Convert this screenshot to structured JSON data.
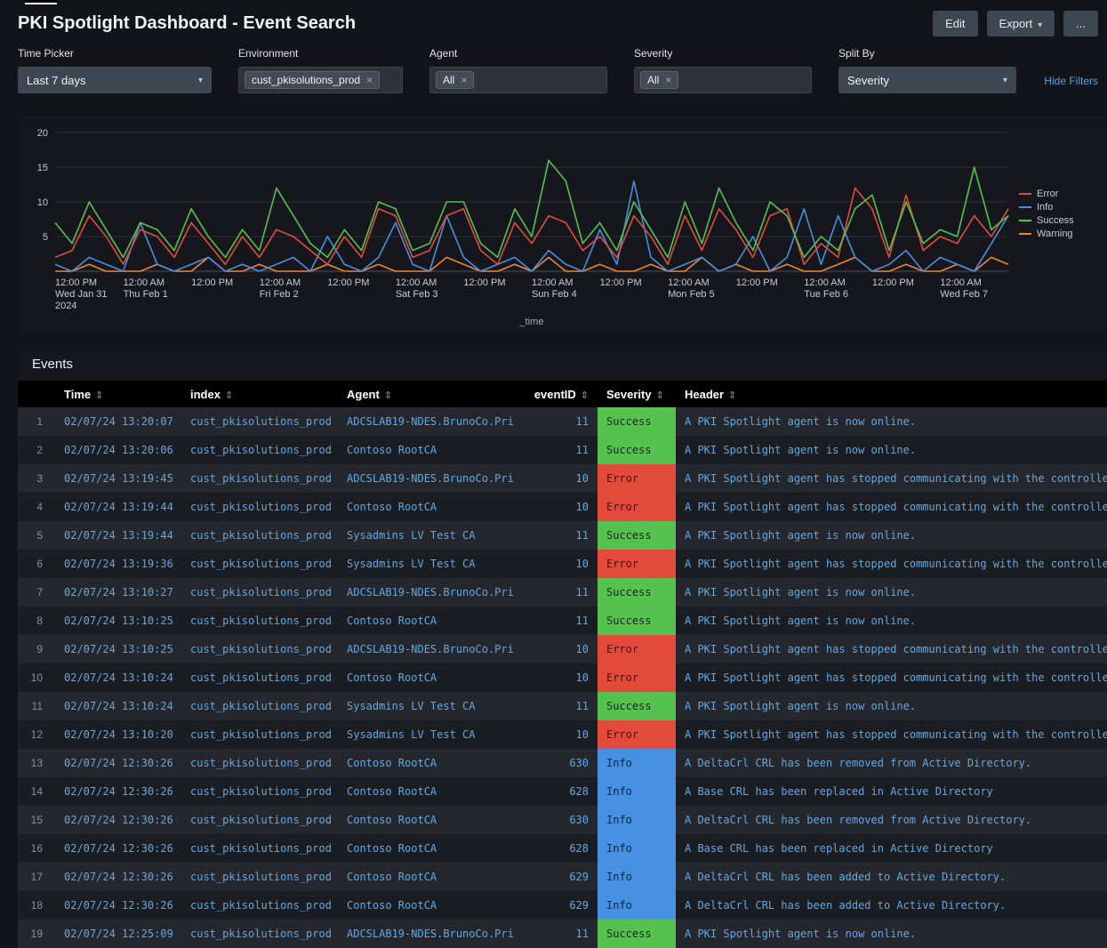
{
  "header": {
    "title": "PKI Spotlight Dashboard - Event Search",
    "edit": "Edit",
    "export": "Export",
    "export_caret": "▾",
    "more": "..."
  },
  "filters": {
    "caret": "▾",
    "chip_close": "×",
    "hide_filters": "Hide Filters",
    "items": [
      {
        "label": "Time Picker",
        "type": "dropdown",
        "value": "Last 7 days"
      },
      {
        "label": "Environment",
        "type": "tokens",
        "chips": [
          "cust_pkisolutions_prod"
        ]
      },
      {
        "label": "Agent",
        "type": "tokens",
        "chips": [
          "All"
        ]
      },
      {
        "label": "Severity",
        "type": "tokens",
        "chips": [
          "All"
        ]
      },
      {
        "label": "Split By",
        "type": "dropdown",
        "value": "Severity"
      }
    ]
  },
  "chart_data": {
    "type": "line",
    "title": "",
    "xlabel": "_time",
    "ylabel": "",
    "ylim": [
      0,
      20
    ],
    "yticks": [
      5,
      10,
      15,
      20
    ],
    "grid": true,
    "legend_position": "right",
    "x_start": "2024-01-31 12:00 PM",
    "x_step_hours": 3,
    "series": [
      {
        "name": "Error",
        "color": "#e24b3c",
        "values": [
          2,
          3,
          8,
          5,
          1,
          6,
          5,
          2,
          7,
          4,
          1,
          5,
          2,
          6,
          5,
          3,
          1,
          5,
          2,
          9,
          8,
          2,
          3,
          8,
          9,
          3,
          1,
          7,
          4,
          8,
          7,
          3,
          5,
          2,
          8,
          5,
          1,
          8,
          3,
          9,
          6,
          2,
          8,
          9,
          1,
          4,
          2,
          12,
          9,
          2,
          11,
          3,
          5,
          4,
          8,
          5,
          9
        ]
      },
      {
        "name": "Info",
        "color": "#478fe0",
        "values": [
          1,
          0,
          2,
          1,
          0,
          7,
          1,
          0,
          1,
          2,
          0,
          1,
          0,
          1,
          2,
          0,
          5,
          1,
          0,
          2,
          7,
          1,
          0,
          8,
          2,
          0,
          1,
          2,
          0,
          3,
          1,
          0,
          6,
          1,
          13,
          2,
          0,
          1,
          2,
          0,
          1,
          5,
          0,
          2,
          9,
          1,
          8,
          2,
          0,
          1,
          3,
          0,
          2,
          1,
          0,
          4,
          8
        ]
      },
      {
        "name": "Success",
        "color": "#55c14e",
        "values": [
          7,
          4,
          10,
          6,
          2,
          7,
          6,
          3,
          9,
          5,
          2,
          6,
          3,
          12,
          8,
          4,
          2,
          6,
          3,
          10,
          9,
          3,
          4,
          10,
          10,
          4,
          2,
          9,
          5,
          16,
          13,
          4,
          7,
          3,
          10,
          6,
          2,
          10,
          4,
          12,
          7,
          3,
          10,
          8,
          2,
          5,
          3,
          9,
          11,
          3,
          10,
          4,
          6,
          5,
          15,
          6,
          8
        ]
      },
      {
        "name": "Warning",
        "color": "#f0862f",
        "values": [
          0,
          0,
          1,
          0,
          0,
          0,
          1,
          0,
          0,
          2,
          0,
          0,
          1,
          0,
          0,
          0,
          1,
          0,
          0,
          1,
          0,
          0,
          0,
          2,
          1,
          0,
          0,
          1,
          0,
          2,
          0,
          0,
          1,
          0,
          0,
          1,
          0,
          0,
          2,
          0,
          1,
          0,
          0,
          1,
          0,
          0,
          1,
          2,
          0,
          0,
          1,
          0,
          0,
          1,
          0,
          2,
          1
        ]
      }
    ],
    "xticks": [
      {
        "index": 0,
        "lines": [
          "12:00 PM",
          "Wed Jan 31",
          "2024"
        ]
      },
      {
        "index": 4,
        "lines": [
          "12:00 AM",
          "Thu Feb 1"
        ]
      },
      {
        "index": 8,
        "lines": [
          "12:00 PM"
        ]
      },
      {
        "index": 12,
        "lines": [
          "12:00 AM",
          "Fri Feb 2"
        ]
      },
      {
        "index": 16,
        "lines": [
          "12:00 PM"
        ]
      },
      {
        "index": 20,
        "lines": [
          "12:00 AM",
          "Sat Feb 3"
        ]
      },
      {
        "index": 24,
        "lines": [
          "12:00 PM"
        ]
      },
      {
        "index": 28,
        "lines": [
          "12:00 AM",
          "Sun Feb 4"
        ]
      },
      {
        "index": 32,
        "lines": [
          "12:00 PM"
        ]
      },
      {
        "index": 36,
        "lines": [
          "12:00 AM",
          "Mon Feb 5"
        ]
      },
      {
        "index": 40,
        "lines": [
          "12:00 PM"
        ]
      },
      {
        "index": 44,
        "lines": [
          "12:00 AM",
          "Tue Feb 6"
        ]
      },
      {
        "index": 48,
        "lines": [
          "12:00 PM"
        ]
      },
      {
        "index": 52,
        "lines": [
          "12:00 AM",
          "Wed Feb 7"
        ]
      }
    ]
  },
  "events": {
    "title": "Events",
    "sort_icon": "⇕",
    "columns": [
      "Time",
      "index",
      "Agent",
      "eventID",
      "Severity",
      "Header"
    ],
    "rows": [
      {
        "time": "02/07/24 13:20:07",
        "index": "cust_pkisolutions_prod",
        "agent": "ADCSLAB19-NDES.BrunoCo.Pri",
        "event_id": "11",
        "severity": "Success",
        "header": "A PKI Spotlight agent is now online."
      },
      {
        "time": "02/07/24 13:20:06",
        "index": "cust_pkisolutions_prod",
        "agent": "Contoso RootCA",
        "event_id": "11",
        "severity": "Success",
        "header": "A PKI Spotlight agent is now online."
      },
      {
        "time": "02/07/24 13:19:45",
        "index": "cust_pkisolutions_prod",
        "agent": "ADCSLAB19-NDES.BrunoCo.Pri",
        "event_id": "10",
        "severity": "Error",
        "header": "A PKI Spotlight agent has stopped communicating with the controller."
      },
      {
        "time": "02/07/24 13:19:44",
        "index": "cust_pkisolutions_prod",
        "agent": "Contoso RootCA",
        "event_id": "10",
        "severity": "Error",
        "header": "A PKI Spotlight agent has stopped communicating with the controller."
      },
      {
        "time": "02/07/24 13:19:44",
        "index": "cust_pkisolutions_prod",
        "agent": "Sysadmins LV Test CA",
        "event_id": "11",
        "severity": "Success",
        "header": "A PKI Spotlight agent is now online."
      },
      {
        "time": "02/07/24 13:19:36",
        "index": "cust_pkisolutions_prod",
        "agent": "Sysadmins LV Test CA",
        "event_id": "10",
        "severity": "Error",
        "header": "A PKI Spotlight agent has stopped communicating with the controller."
      },
      {
        "time": "02/07/24 13:10:27",
        "index": "cust_pkisolutions_prod",
        "agent": "ADCSLAB19-NDES.BrunoCo.Pri",
        "event_id": "11",
        "severity": "Success",
        "header": "A PKI Spotlight agent is now online."
      },
      {
        "time": "02/07/24 13:10:25",
        "index": "cust_pkisolutions_prod",
        "agent": "Contoso RootCA",
        "event_id": "11",
        "severity": "Success",
        "header": "A PKI Spotlight agent is now online."
      },
      {
        "time": "02/07/24 13:10:25",
        "index": "cust_pkisolutions_prod",
        "agent": "ADCSLAB19-NDES.BrunoCo.Pri",
        "event_id": "10",
        "severity": "Error",
        "header": "A PKI Spotlight agent has stopped communicating with the controller."
      },
      {
        "time": "02/07/24 13:10:24",
        "index": "cust_pkisolutions_prod",
        "agent": "Contoso RootCA",
        "event_id": "10",
        "severity": "Error",
        "header": "A PKI Spotlight agent has stopped communicating with the controller."
      },
      {
        "time": "02/07/24 13:10:24",
        "index": "cust_pkisolutions_prod",
        "agent": "Sysadmins LV Test CA",
        "event_id": "11",
        "severity": "Success",
        "header": "A PKI Spotlight agent is now online."
      },
      {
        "time": "02/07/24 13:10:20",
        "index": "cust_pkisolutions_prod",
        "agent": "Sysadmins LV Test CA",
        "event_id": "10",
        "severity": "Error",
        "header": "A PKI Spotlight agent has stopped communicating with the controller."
      },
      {
        "time": "02/07/24 12:30:26",
        "index": "cust_pkisolutions_prod",
        "agent": "Contoso RootCA",
        "event_id": "630",
        "severity": "Info",
        "header": "A DeltaCrl CRL has been removed from Active Directory."
      },
      {
        "time": "02/07/24 12:30:26",
        "index": "cust_pkisolutions_prod",
        "agent": "Contoso RootCA",
        "event_id": "628",
        "severity": "Info",
        "header": "A Base CRL has been replaced in Active Directory"
      },
      {
        "time": "02/07/24 12:30:26",
        "index": "cust_pkisolutions_prod",
        "agent": "Contoso RootCA",
        "event_id": "630",
        "severity": "Info",
        "header": "A DeltaCrl CRL has been removed from Active Directory."
      },
      {
        "time": "02/07/24 12:30:26",
        "index": "cust_pkisolutions_prod",
        "agent": "Contoso RootCA",
        "event_id": "628",
        "severity": "Info",
        "header": "A Base CRL has been replaced in Active Directory"
      },
      {
        "time": "02/07/24 12:30:26",
        "index": "cust_pkisolutions_prod",
        "agent": "Contoso RootCA",
        "event_id": "629",
        "severity": "Info",
        "header": "A DeltaCrl CRL has been added to Active Directory."
      },
      {
        "time": "02/07/24 12:30:26",
        "index": "cust_pkisolutions_prod",
        "agent": "Contoso RootCA",
        "event_id": "629",
        "severity": "Info",
        "header": "A DeltaCrl CRL has been added to Active Directory."
      },
      {
        "time": "02/07/24 12:25:09",
        "index": "cust_pkisolutions_prod",
        "agent": "ADCSLAB19-NDES.BrunoCo.Pri",
        "event_id": "11",
        "severity": "Success",
        "header": "A PKI Spotlight agent is now online."
      }
    ]
  },
  "colors": {
    "severity": {
      "Success": "#55c14e",
      "Error": "#e24b3c",
      "Info": "#478fe0"
    },
    "series": {
      "Error": "#e24b3c",
      "Info": "#478fe0",
      "Success": "#55c14e",
      "Warning": "#f0862f"
    },
    "link_text": "#5ca9e8",
    "accent_link": "#4fa4e8"
  }
}
